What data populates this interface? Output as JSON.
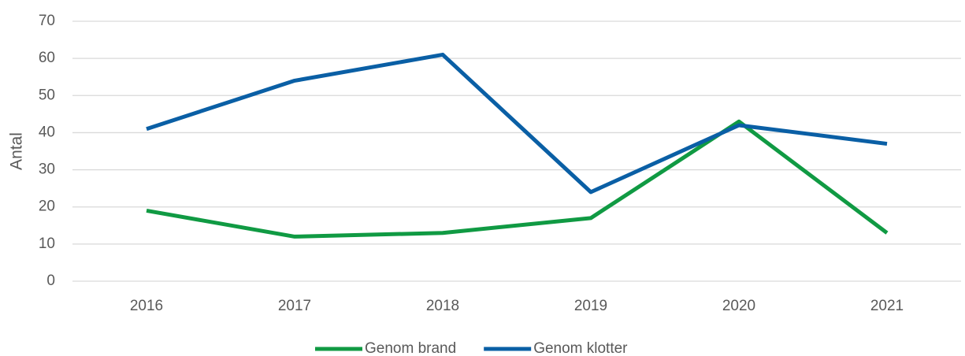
{
  "chart_data": {
    "type": "line",
    "y_label": "Antal",
    "categories": [
      "2016",
      "2017",
      "2018",
      "2019",
      "2020",
      "2021"
    ],
    "series": [
      {
        "name": "Genom brand",
        "color": "#109a43",
        "values": [
          19,
          12,
          13,
          17,
          43,
          13
        ]
      },
      {
        "name": "Genom klotter",
        "color": "#0a5fa5",
        "values": [
          41,
          54,
          61,
          24,
          42,
          37
        ]
      }
    ],
    "ylim": [
      0,
      70
    ],
    "yticks": [
      0,
      10,
      20,
      30,
      40,
      50,
      60,
      70
    ],
    "grid": true,
    "legend": "bottom"
  }
}
